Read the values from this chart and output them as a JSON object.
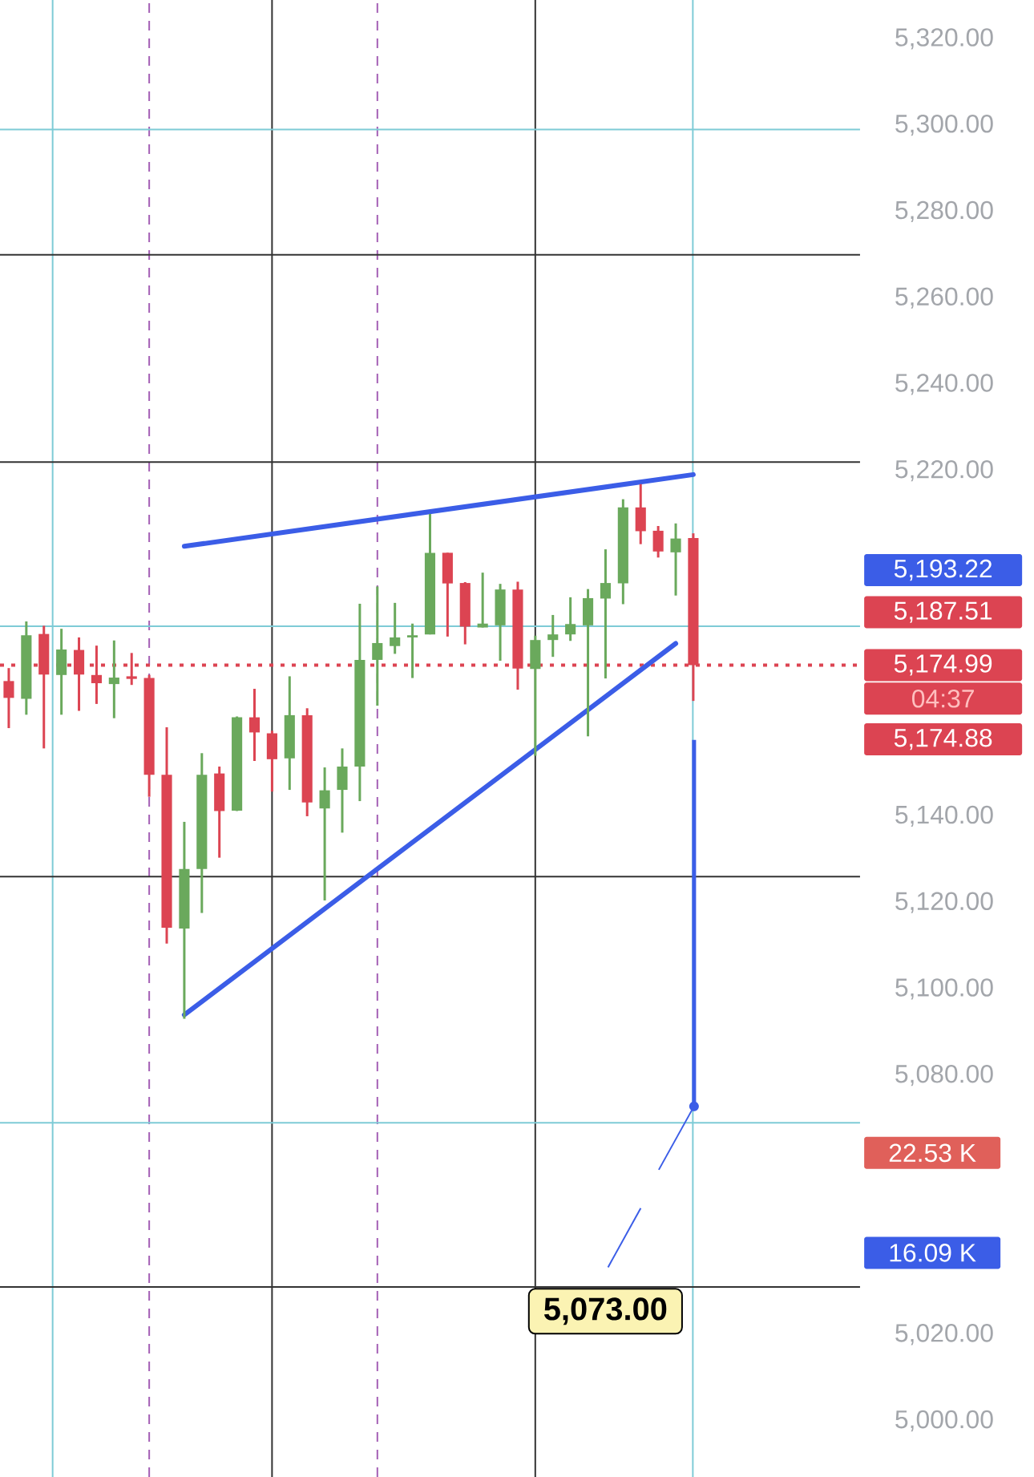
{
  "chart_data": {
    "type": "candlestick",
    "categories": [
      null,
      null,
      null,
      null,
      null,
      null,
      null,
      null,
      null,
      null,
      null,
      null,
      null,
      null,
      null,
      null,
      null,
      null,
      null,
      null,
      null,
      null,
      null,
      null,
      null,
      null,
      null,
      null,
      null,
      null,
      null,
      null,
      null,
      null,
      null,
      null,
      null,
      null,
      null,
      null,
      null,
      null,
      null,
      null,
      null,
      null,
      null,
      null,
      null
    ],
    "series": [
      {
        "ohlc": [
          [
            5171.3,
            5174.3,
            5160.4,
            5167.4
          ],
          [
            5167.2,
            5185.1,
            5163.5,
            5181.9
          ],
          [
            5182.2,
            5184.1,
            5155.7,
            5172.8
          ],
          [
            5172.7,
            5183.4,
            5163.5,
            5178.6
          ],
          [
            5178.5,
            5181.4,
            5164.4,
            5172.8
          ],
          [
            5172.7,
            5179.5,
            5166.0,
            5170.8
          ],
          [
            5170.6,
            5180.7,
            5162.7,
            5172.1
          ],
          [
            5172.4,
            5177.8,
            5170.4,
            5171.8
          ],
          [
            5172.0,
            5172.7,
            5144.5,
            5149.6
          ],
          [
            5149.6,
            5160.6,
            5110.5,
            5114.2
          ],
          [
            5114.0,
            5138.7,
            5093.1,
            5127.8
          ],
          [
            5127.8,
            5154.6,
            5117.6,
            5149.6
          ],
          [
            5149.9,
            5151.5,
            5130.4,
            5141.2
          ],
          [
            5141.3,
            5163.1,
            5141.2,
            5162.9
          ],
          [
            5162.9,
            5169.5,
            5152.8,
            5159.4
          ],
          [
            5159.2,
            5159.8,
            5145.7,
            5153.2
          ],
          [
            5153.4,
            5172.4,
            5146.1,
            5163.4
          ],
          [
            5163.4,
            5165.0,
            5140.0,
            5143.2
          ],
          [
            5141.8,
            5151.3,
            5120.5,
            5146.0
          ],
          [
            5146.1,
            5155.7,
            5136.2,
            5151.5
          ],
          [
            5151.5,
            5189.2,
            5143.5,
            5176.2
          ],
          [
            5176.2,
            5193.2,
            5165.6,
            5180.1
          ],
          [
            5179.4,
            5189.4,
            5177.6,
            5181.4
          ],
          [
            5181.4,
            5184.6,
            5172.0,
            5181.9
          ],
          [
            5182.1,
            5210.0,
            5182.1,
            5201.0
          ],
          [
            5201.0,
            5201.0,
            5181.6,
            5193.9
          ],
          [
            5194.0,
            5194.2,
            5179.8,
            5183.9
          ],
          [
            5183.7,
            5196.4,
            5183.7,
            5184.6
          ],
          [
            5184.2,
            5193.8,
            5176.0,
            5192.5
          ],
          [
            5192.5,
            5194.3,
            5169.3,
            5174.2
          ],
          [
            5174.1,
            5181.8,
            5154.0,
            5180.8
          ],
          [
            5180.8,
            5186.6,
            5176.9,
            5182.1
          ],
          [
            5182.1,
            5190.7,
            5180.6,
            5184.5
          ],
          [
            5184.2,
            5192.6,
            5158.5,
            5190.5
          ],
          [
            5190.4,
            5201.8,
            5171.9,
            5194.0
          ],
          [
            5193.9,
            5213.4,
            5189.1,
            5211.5
          ],
          [
            5211.5,
            5216.9,
            5203.0,
            5206.0
          ],
          [
            5206.1,
            5207.2,
            5199.9,
            5201.3
          ],
          [
            5201.1,
            5207.8,
            5191.1,
            5204.3
          ],
          [
            5204.4,
            5205.5,
            5166.7,
            5174.99
          ],
          null,
          null,
          null,
          null,
          null,
          null,
          null,
          null,
          null
        ],
        "colors": [
          "#dc4452",
          "#6aa95c",
          "#dc4452",
          "#6aa95c",
          "#dc4452",
          "#dc4452",
          "#6aa95c",
          "#dc4452",
          "#dc4452",
          "#dc4452",
          "#6aa95c",
          "#6aa95c",
          "#dc4452",
          "#6aa95c",
          "#dc4452",
          "#dc4452",
          "#6aa95c",
          "#dc4452",
          "#6aa95c",
          "#6aa95c",
          "#6aa95c",
          "#6aa95c",
          "#6aa95c",
          "#6aa95c",
          "#6aa95c",
          "#dc4452",
          "#dc4452",
          "#6aa95c",
          "#6aa95c",
          "#dc4452",
          "#6aa95c",
          "#6aa95c",
          "#6aa95c",
          "#6aa95c",
          "#6aa95c",
          "#6aa95c",
          "#dc4452",
          "#dc4452",
          "#6aa95c",
          "#dc4452",
          null,
          null,
          null,
          null,
          null,
          null,
          null,
          null,
          null
        ]
      },
      {
        "type": "line",
        "color": "#3b5de7",
        "values": [
          null,
          null,
          null,
          null,
          null,
          null,
          null,
          null,
          null,
          null,
          5202.5,
          null,
          null,
          null,
          null,
          null,
          null,
          null,
          null,
          null,
          null,
          null,
          null,
          null,
          null,
          null,
          null,
          null,
          null,
          null,
          null,
          null,
          null,
          null,
          null,
          null,
          null,
          null,
          null,
          5219.1,
          null,
          null,
          null,
          null,
          null,
          null,
          null,
          null,
          null
        ]
      },
      {
        "type": "line",
        "color": "#3b5de7",
        "values": [
          null,
          null,
          null,
          null,
          null,
          null,
          null,
          null,
          null,
          null,
          5094.0,
          null,
          null,
          null,
          null,
          null,
          null,
          null,
          null,
          null,
          null,
          null,
          null,
          null,
          null,
          null,
          null,
          null,
          null,
          null,
          null,
          null,
          null,
          null,
          null,
          null,
          null,
          null,
          5180.0,
          null,
          null,
          null,
          null,
          null,
          null,
          null,
          null,
          null,
          null
        ]
      }
    ],
    "ylim": [
      4987,
      5329
    ],
    "yticks": [
      {
        "value": 5000,
        "label": "5,000.00"
      },
      {
        "value": 5020,
        "label": "5,020.00"
      },
      {
        "value": 5080,
        "label": "5,080.00"
      },
      {
        "value": 5100,
        "label": "5,100.00"
      },
      {
        "value": 5120,
        "label": "5,120.00"
      },
      {
        "value": 5140,
        "label": "5,140.00"
      },
      {
        "value": 5220,
        "label": "5,220.00"
      },
      {
        "value": 5240,
        "label": "5,240.00"
      },
      {
        "value": 5260,
        "label": "5,260.00"
      },
      {
        "value": 5280,
        "label": "5,280.00"
      },
      {
        "value": 5300,
        "label": "5,300.00"
      },
      {
        "value": 5320,
        "label": "5,320.00"
      }
    ],
    "ref_lines": [
      {
        "axis": "y",
        "value": 5270,
        "color": "#333333"
      },
      {
        "axis": "y",
        "value": 5222,
        "color": "#333333"
      },
      {
        "axis": "y",
        "value": 5126,
        "color": "#333333"
      },
      {
        "axis": "y",
        "value": 5031,
        "color": "#333333"
      },
      {
        "axis": "y",
        "value": 5299,
        "color": "#7ecbd6"
      },
      {
        "axis": "y",
        "value": 5184,
        "color": "#7ecbd6"
      },
      {
        "axis": "y",
        "value": 5069,
        "color": "#7ecbd6"
      },
      {
        "axis": "y",
        "value": 5174.99,
        "color": "#dc4452",
        "line_style": "dotted"
      }
    ],
    "annotations": [
      "5,193.22",
      "5,187.51",
      "5,174.99",
      "04:37",
      "5,174.88",
      "22.53 K",
      "16.09 K",
      "5,073.00"
    ],
    "grid": "x"
  }
}
